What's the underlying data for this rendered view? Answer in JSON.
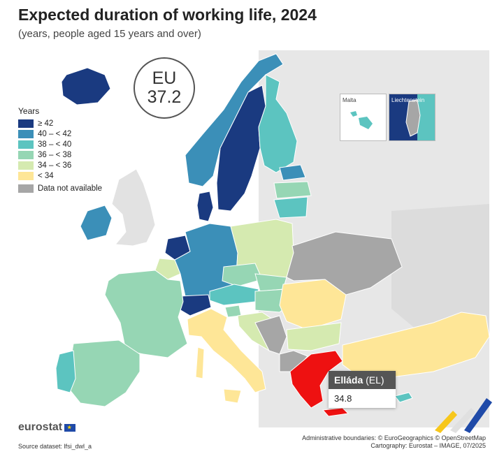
{
  "title": "Expected duration of working life, 2024",
  "subtitle": "(years, people aged 15 years and over)",
  "eu": {
    "label": "EU",
    "value": "37.2"
  },
  "legend": {
    "title": "Years",
    "items": [
      {
        "label": "≥ 42",
        "color": "#1a3a80"
      },
      {
        "label": "40 – < 42",
        "color": "#3b8fb8"
      },
      {
        "label": "38 – < 40",
        "color": "#5cc4c0"
      },
      {
        "label": "36 – < 38",
        "color": "#96d6b4"
      },
      {
        "label": "34 – < 36",
        "color": "#d5eab0"
      },
      {
        "label": "< 34",
        "color": "#fee697"
      }
    ],
    "na_label": "Data not available",
    "na_color": "#a6a6a6"
  },
  "insets": {
    "malta": "Malta",
    "liechtenstein": "Liechtenstein"
  },
  "tooltip": {
    "name": "Elláda",
    "code": "(EL)",
    "value": "34.8"
  },
  "highlight_color": "#ee1111",
  "brand": "eurostat",
  "source": "Source dataset: lfsi_dwl_a",
  "credits": {
    "line1": "Administrative boundaries: © EuroGeographics © OpenStreetMap",
    "line2": "Cartography: Eurostat – IMAGE, 07/2025"
  }
}
